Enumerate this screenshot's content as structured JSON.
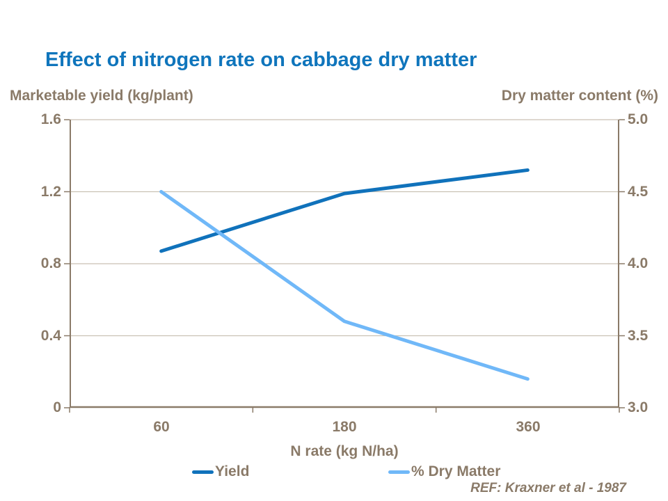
{
  "colors": {
    "title": "#0F75BC",
    "axis_text": "#8A7A68",
    "axis_line": "#8A7A68",
    "gridline": "#C9C1B4",
    "yield_line": "#1072BB",
    "dry_matter_line": "#70B8F8"
  },
  "chart_data": {
    "type": "line",
    "title": "Effect of nitrogen rate on cabbage dry matter",
    "categories": [
      "60",
      "180",
      "360"
    ],
    "xlabel": "N rate (kg N/ha)",
    "grid": true,
    "legend_position": "bottom",
    "left_axis": {
      "label": "Marketable yield (kg/plant)",
      "ticks": [
        "1.6",
        "1.2",
        "0.8",
        "0.4",
        "0"
      ],
      "range": [
        0,
        1.6
      ]
    },
    "right_axis": {
      "label": "Dry matter content (%)",
      "ticks": [
        "5.0",
        "4.5",
        "4.0",
        "3.5",
        "3.0"
      ],
      "range": [
        3.0,
        5.0
      ]
    },
    "series": [
      {
        "name": "Yield",
        "axis": "left",
        "color": "#1072BB",
        "values": [
          0.87,
          1.19,
          1.32
        ]
      },
      {
        "name": "% Dry Matter",
        "axis": "right",
        "color": "#70B8F8",
        "values": [
          4.5,
          3.6,
          3.2
        ]
      }
    ]
  },
  "footer": {
    "ref_text": "REF: Kraxner et al - 1987"
  }
}
